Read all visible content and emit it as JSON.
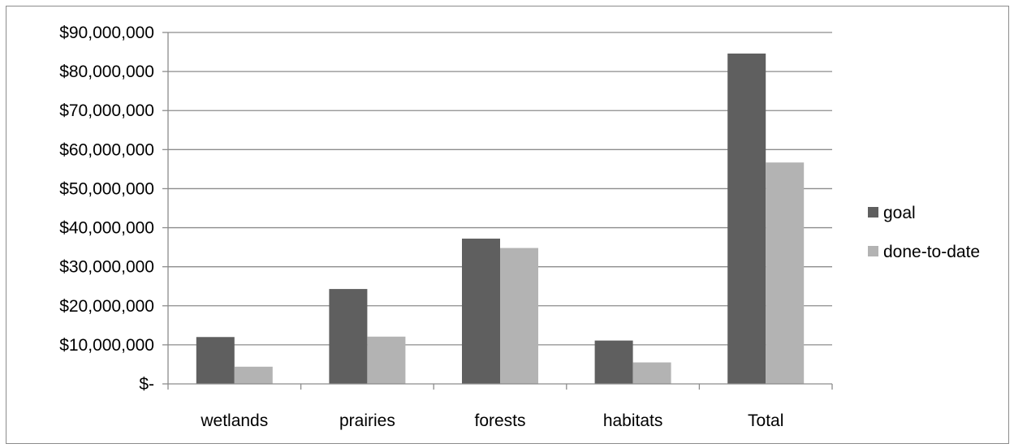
{
  "chart_data": {
    "type": "bar",
    "categories": [
      "wetlands",
      "prairies",
      "forests",
      "habitats",
      "Total"
    ],
    "series": [
      {
        "name": "goal",
        "color": "#5f5f5f",
        "values": [
          12000000,
          24300000,
          37200000,
          11100000,
          84600000
        ]
      },
      {
        "name": "done-to-date",
        "color": "#b3b3b3",
        "values": [
          4400000,
          12100000,
          34800000,
          5500000,
          56700000
        ]
      }
    ],
    "ylim": [
      0,
      90000000
    ],
    "yticks": [
      {
        "value": 0,
        "label": "$-"
      },
      {
        "value": 10000000,
        "label": "$10,000,000"
      },
      {
        "value": 20000000,
        "label": "$20,000,000"
      },
      {
        "value": 30000000,
        "label": "$30,000,000"
      },
      {
        "value": 40000000,
        "label": "$40,000,000"
      },
      {
        "value": 50000000,
        "label": "$50,000,000"
      },
      {
        "value": 60000000,
        "label": "$60,000,000"
      },
      {
        "value": 70000000,
        "label": "$70,000,000"
      },
      {
        "value": 80000000,
        "label": "$80,000,000"
      },
      {
        "value": 90000000,
        "label": "$90,000,000"
      }
    ],
    "grid": true,
    "legend_position": "right",
    "title": "",
    "xlabel": "",
    "ylabel": ""
  }
}
